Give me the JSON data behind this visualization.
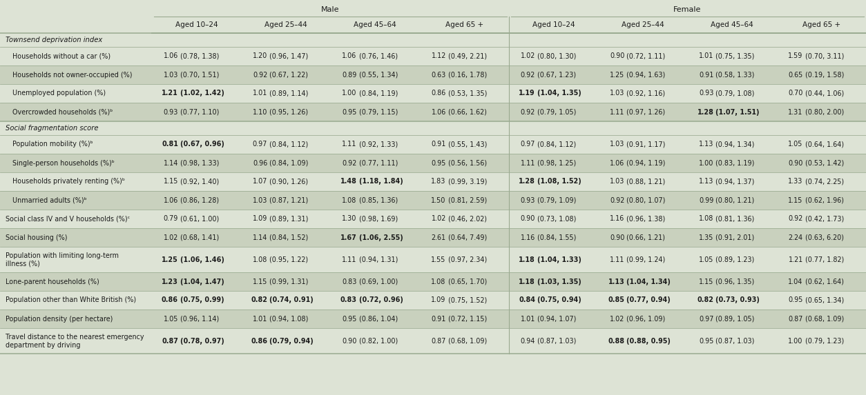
{
  "bg_color": "#dde3d5",
  "row_colors": [
    "#dde3d5",
    "#c9d1be"
  ],
  "title_male": "Male",
  "title_female": "Female",
  "age_groups": [
    "Aged 10–24",
    "Aged 25–44",
    "Aged 45–64",
    "Aged 65 +"
  ],
  "rows": [
    {
      "label": "Households without a car (%)",
      "indent": true,
      "section": "Townsend deprivation index",
      "data": [
        [
          "1.06",
          "(0.78, 1.38)",
          false,
          false
        ],
        [
          "1.20",
          "(0.96, 1.47)",
          false,
          false
        ],
        [
          "1.06",
          "(0.76, 1.46)",
          false,
          false
        ],
        [
          "1.12",
          "(0.49, 2.21)",
          false,
          false
        ],
        [
          "1.02",
          "(0.80, 1.30)",
          false,
          false
        ],
        [
          "0.90",
          "(0.72, 1.11)",
          false,
          false
        ],
        [
          "1.01",
          "(0.75, 1.35)",
          false,
          false
        ],
        [
          "1.59",
          "(0.70, 3.11)",
          false,
          false
        ]
      ]
    },
    {
      "label": "Households not owner-occupied (%)",
      "indent": true,
      "section": "Townsend deprivation index",
      "data": [
        [
          "1.03",
          "(0.70, 1.51)",
          false,
          false
        ],
        [
          "0.92",
          "(0.67, 1.22)",
          false,
          false
        ],
        [
          "0.89",
          "(0.55, 1.34)",
          false,
          false
        ],
        [
          "0.63",
          "(0.16, 1.78)",
          false,
          false
        ],
        [
          "0.92",
          "(0.67, 1.23)",
          false,
          false
        ],
        [
          "1.25",
          "(0.94, 1.63)",
          false,
          false
        ],
        [
          "0.91",
          "(0.58, 1.33)",
          false,
          false
        ],
        [
          "0.65",
          "(0.19, 1.58)",
          false,
          false
        ]
      ]
    },
    {
      "label": "Unemployed population (%)",
      "indent": true,
      "section": "Townsend deprivation index",
      "data": [
        [
          "1.21",
          "(1.02, 1.42)",
          true,
          true
        ],
        [
          "1.01",
          "(0.89, 1.14)",
          false,
          false
        ],
        [
          "1.00",
          "(0.84, 1.19)",
          false,
          false
        ],
        [
          "0.86",
          "(0.53, 1.35)",
          false,
          false
        ],
        [
          "1.19",
          "(1.04, 1.35)",
          true,
          true
        ],
        [
          "1.03",
          "(0.92, 1.16)",
          false,
          false
        ],
        [
          "0.93",
          "(0.79, 1.08)",
          false,
          false
        ],
        [
          "0.70",
          "(0.44, 1.06)",
          false,
          false
        ]
      ]
    },
    {
      "label": "Overcrowded households (%)ᵇ",
      "indent": true,
      "section": "Townsend deprivation index",
      "data": [
        [
          "0.93",
          "(0.77, 1.10)",
          false,
          false
        ],
        [
          "1.10",
          "(0.95, 1.26)",
          false,
          false
        ],
        [
          "0.95",
          "(0.79, 1.15)",
          false,
          false
        ],
        [
          "1.06",
          "(0.66, 1.62)",
          false,
          false
        ],
        [
          "0.92",
          "(0.79, 1.05)",
          false,
          false
        ],
        [
          "1.11",
          "(0.97, 1.26)",
          false,
          false
        ],
        [
          "1.28",
          "(1.07, 1.51)",
          true,
          true
        ],
        [
          "1.31",
          "(0.80, 2.00)",
          false,
          false
        ]
      ]
    },
    {
      "label": "Population mobility (%)ᵇ",
      "indent": true,
      "section": "Social fragmentation score",
      "data": [
        [
          "0.81",
          "(0.67, 0.96)",
          true,
          true
        ],
        [
          "0.97",
          "(0.84, 1.12)",
          false,
          false
        ],
        [
          "1.11",
          "(0.92, 1.33)",
          false,
          false
        ],
        [
          "0.91",
          "(0.55, 1.43)",
          false,
          false
        ],
        [
          "0.97",
          "(0.84, 1.12)",
          false,
          false
        ],
        [
          "1.03",
          "(0.91, 1.17)",
          false,
          false
        ],
        [
          "1.13",
          "(0.94, 1.34)",
          false,
          false
        ],
        [
          "1.05",
          "(0.64, 1.64)",
          false,
          false
        ]
      ]
    },
    {
      "label": "Single-person households (%)ᵇ",
      "indent": true,
      "section": "Social fragmentation score",
      "data": [
        [
          "1.14",
          "(0.98, 1.33)",
          false,
          false
        ],
        [
          "0.96",
          "(0.84, 1.09)",
          false,
          false
        ],
        [
          "0.92",
          "(0.77, 1.11)",
          false,
          false
        ],
        [
          "0.95",
          "(0.56, 1.56)",
          false,
          false
        ],
        [
          "1.11",
          "(0.98, 1.25)",
          false,
          false
        ],
        [
          "1.06",
          "(0.94, 1.19)",
          false,
          false
        ],
        [
          "1.00",
          "(0.83, 1.19)",
          false,
          false
        ],
        [
          "0.90",
          "(0.53, 1.42)",
          false,
          false
        ]
      ]
    },
    {
      "label": "Households privately renting (%)ᵇ",
      "indent": true,
      "section": "Social fragmentation score",
      "data": [
        [
          "1.15",
          "(0.92, 1.40)",
          false,
          false
        ],
        [
          "1.07",
          "(0.90, 1.26)",
          false,
          false
        ],
        [
          "1.48",
          "(1.18, 1.84)",
          true,
          true
        ],
        [
          "1.83",
          "(0.99, 3.19)",
          false,
          false
        ],
        [
          "1.28",
          "(1.08, 1.52)",
          true,
          true
        ],
        [
          "1.03",
          "(0.88, 1.21)",
          false,
          false
        ],
        [
          "1.13",
          "(0.94, 1.37)",
          false,
          false
        ],
        [
          "1.33",
          "(0.74, 2.25)",
          false,
          false
        ]
      ]
    },
    {
      "label": "Unmarried adults (%)ᵇ",
      "indent": true,
      "section": "Social fragmentation score",
      "data": [
        [
          "1.06",
          "(0.86, 1.28)",
          false,
          false
        ],
        [
          "1.03",
          "(0.87, 1.21)",
          false,
          false
        ],
        [
          "1.08",
          "(0.85, 1.36)",
          false,
          false
        ],
        [
          "1.50",
          "(0.81, 2.59)",
          false,
          false
        ],
        [
          "0.93",
          "(0.79, 1.09)",
          false,
          false
        ],
        [
          "0.92",
          "(0.80, 1.07)",
          false,
          false
        ],
        [
          "0.99",
          "(0.80, 1.21)",
          false,
          false
        ],
        [
          "1.15",
          "(0.62, 1.96)",
          false,
          false
        ]
      ]
    },
    {
      "label": "Social class IV and V households (%)ᶜ",
      "indent": false,
      "section": "",
      "data": [
        [
          "0.79",
          "(0.61, 1.00)",
          false,
          false
        ],
        [
          "1.09",
          "(0.89, 1.31)",
          false,
          false
        ],
        [
          "1.30",
          "(0.98, 1.69)",
          false,
          false
        ],
        [
          "1.02",
          "(0.46, 2.02)",
          false,
          false
        ],
        [
          "0.90",
          "(0.73, 1.08)",
          false,
          false
        ],
        [
          "1.16",
          "(0.96, 1.38)",
          false,
          false
        ],
        [
          "1.08",
          "(0.81, 1.36)",
          false,
          false
        ],
        [
          "0.92",
          "(0.42, 1.73)",
          false,
          false
        ]
      ]
    },
    {
      "label": "Social housing (%)",
      "indent": false,
      "section": "",
      "data": [
        [
          "1.02",
          "(0.68, 1.41)",
          false,
          false
        ],
        [
          "1.14",
          "(0.84, 1.52)",
          false,
          false
        ],
        [
          "1.67",
          "(1.06, 2.55)",
          true,
          true
        ],
        [
          "2.61",
          "(0.64, 7.49)",
          false,
          false
        ],
        [
          "1.16",
          "(0.84, 1.55)",
          false,
          false
        ],
        [
          "0.90",
          "(0.66, 1.21)",
          false,
          false
        ],
        [
          "1.35",
          "(0.91, 2.01)",
          false,
          false
        ],
        [
          "2.24",
          "(0.63, 6.20)",
          false,
          false
        ]
      ]
    },
    {
      "label": "Population with limiting long-term\nillness (%)",
      "indent": false,
      "section": "",
      "data": [
        [
          "1.25",
          "(1.06, 1.46)",
          true,
          true
        ],
        [
          "1.08",
          "(0.95, 1.22)",
          false,
          false
        ],
        [
          "1.11",
          "(0.94, 1.31)",
          false,
          false
        ],
        [
          "1.55",
          "(0.97, 2.34)",
          false,
          false
        ],
        [
          "1.18",
          "(1.04, 1.33)",
          true,
          true
        ],
        [
          "1.11",
          "(0.99, 1.24)",
          false,
          false
        ],
        [
          "1.05",
          "(0.89, 1.23)",
          false,
          false
        ],
        [
          "1.21",
          "(0.77, 1.82)",
          false,
          false
        ]
      ]
    },
    {
      "label": "Lone-parent households (%)",
      "indent": false,
      "section": "",
      "data": [
        [
          "1.23",
          "(1.04, 1.47)",
          true,
          true
        ],
        [
          "1.15",
          "(0.99, 1.31)",
          false,
          false
        ],
        [
          "0.83",
          "(0.69, 1.00)",
          false,
          false
        ],
        [
          "1.08",
          "(0.65, 1.70)",
          false,
          false
        ],
        [
          "1.18",
          "(1.03, 1.35)",
          true,
          true
        ],
        [
          "1.13",
          "(1.04, 1.34)",
          true,
          true
        ],
        [
          "1.15",
          "(0.96, 1.35)",
          false,
          false
        ],
        [
          "1.04",
          "(0.62, 1.64)",
          false,
          false
        ]
      ]
    },
    {
      "label": "Population other than White British (%)",
      "indent": false,
      "section": "",
      "data": [
        [
          "0.86",
          "(0.75, 0.99)",
          true,
          true
        ],
        [
          "0.82",
          "(0.74, 0.91)",
          true,
          true
        ],
        [
          "0.83",
          "(0.72, 0.96)",
          true,
          true
        ],
        [
          "1.09",
          "(0.75, 1.52)",
          false,
          false
        ],
        [
          "0.84",
          "(0.75, 0.94)",
          true,
          true
        ],
        [
          "0.85",
          "(0.77, 0.94)",
          true,
          true
        ],
        [
          "0.82",
          "(0.73, 0.93)",
          true,
          true
        ],
        [
          "0.95",
          "(0.65, 1.34)",
          false,
          false
        ]
      ]
    },
    {
      "label": "Population density (per hectare)",
      "indent": false,
      "section": "",
      "data": [
        [
          "1.05",
          "(0.96, 1.14)",
          false,
          false
        ],
        [
          "1.01",
          "(0.94, 1.08)",
          false,
          false
        ],
        [
          "0.95",
          "(0.86, 1.04)",
          false,
          false
        ],
        [
          "0.91",
          "(0.72, 1.15)",
          false,
          false
        ],
        [
          "1.01",
          "(0.94, 1.07)",
          false,
          false
        ],
        [
          "1.02",
          "(0.96, 1.09)",
          false,
          false
        ],
        [
          "0.97",
          "(0.89, 1.05)",
          false,
          false
        ],
        [
          "0.87",
          "(0.68, 1.09)",
          false,
          false
        ]
      ]
    },
    {
      "label": "Travel distance to the nearest emergency\ndepartment by driving",
      "indent": false,
      "section": "",
      "data": [
        [
          "0.87",
          "(0.78, 0.97)",
          true,
          true
        ],
        [
          "0.86",
          "(0.79, 0.94)",
          true,
          true
        ],
        [
          "0.90",
          "(0.82, 1.00)",
          false,
          false
        ],
        [
          "0.87",
          "(0.68, 1.09)",
          false,
          false
        ],
        [
          "0.94",
          "(0.87, 1.03)",
          false,
          false
        ],
        [
          "0.88",
          "(0.88, 0.95)",
          true,
          true
        ],
        [
          "0.95",
          "(0.87, 1.03)",
          false,
          false
        ],
        [
          "1.00",
          "(0.79, 1.23)",
          false,
          false
        ]
      ]
    }
  ]
}
